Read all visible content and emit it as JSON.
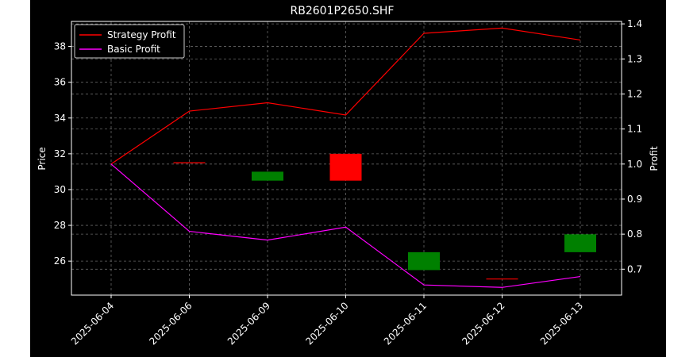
{
  "chart_data": {
    "type": "candlestick_with_lines",
    "title": "RB2601P2650.SHF",
    "ylabel_left": "Price",
    "ylabel_right": "Profit",
    "xlabel": "",
    "categories": [
      "2025-06-04",
      "2025-06-06",
      "2025-06-09",
      "2025-06-10",
      "2025-06-11",
      "2025-06-12",
      "2025-06-13"
    ],
    "ylim_left": [
      24.1,
      39.4
    ],
    "ylim_right": [
      0.626,
      1.407
    ],
    "yticks_left": [
      26,
      28,
      30,
      32,
      34,
      36,
      38
    ],
    "yticks_right": [
      0.7,
      0.8,
      0.9,
      1.0,
      1.1,
      1.2,
      1.3,
      1.4
    ],
    "grid": true,
    "legend_position": "top-left",
    "candles": [
      {
        "date": "2025-06-04",
        "open": null,
        "high": null,
        "low": null,
        "close": null
      },
      {
        "date": "2025-06-06",
        "open": 31.5,
        "high": 31.5,
        "low": 31.5,
        "close": 31.5
      },
      {
        "date": "2025-06-09",
        "open": 30.5,
        "high": 31.0,
        "low": 30.5,
        "close": 31.0
      },
      {
        "date": "2025-06-10",
        "open": 32.0,
        "high": 32.0,
        "low": 30.5,
        "close": 30.5
      },
      {
        "date": "2025-06-11",
        "open": 25.5,
        "high": 26.5,
        "low": 25.5,
        "close": 26.5
      },
      {
        "date": "2025-06-12",
        "open": 25.0,
        "high": 25.0,
        "low": 25.0,
        "close": 25.0
      },
      {
        "date": "2025-06-13",
        "open": 26.5,
        "high": 27.5,
        "low": 26.5,
        "close": 27.5
      }
    ],
    "series": [
      {
        "name": "Strategy Profit",
        "axis": "right",
        "color": "#ff0000",
        "values": [
          1.0,
          1.151,
          1.175,
          1.14,
          1.373,
          1.388,
          1.354
        ]
      },
      {
        "name": "Basic Profit",
        "axis": "right",
        "color": "#ff00ff",
        "values": [
          1.0,
          0.808,
          0.783,
          0.82,
          0.655,
          0.648,
          0.679
        ]
      }
    ],
    "colors": {
      "up": "#008000",
      "down": "#ff0000",
      "flat": "#ff0000",
      "background": "#000000",
      "text": "#ffffff",
      "grid": "#666666"
    }
  }
}
